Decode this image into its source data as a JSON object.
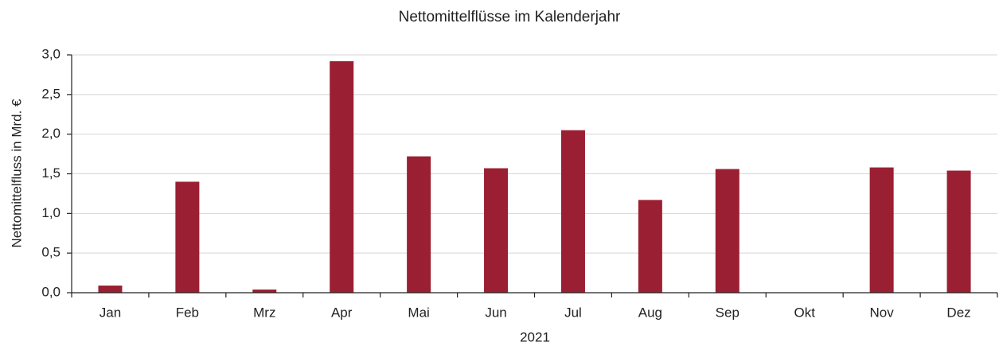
{
  "chart_data": {
    "type": "bar",
    "title": "Nettomittelflüsse im Kalenderjahr",
    "x_label": "2021",
    "y_label": "Nettomittelfluss in Mrd. €",
    "categories": [
      "Jan",
      "Feb",
      "Mrz",
      "Apr",
      "Mai",
      "Jun",
      "Jul",
      "Aug",
      "Sep",
      "Okt",
      "Nov",
      "Dez"
    ],
    "values": [
      0.09,
      1.4,
      0.04,
      2.92,
      1.72,
      1.57,
      2.05,
      1.17,
      1.56,
      0,
      1.58,
      1.54
    ],
    "color": "#9b1f32",
    "ylim": [
      0,
      3
    ],
    "yticks": [
      {
        "value": 0,
        "label": "0,0"
      },
      {
        "value": 0.5,
        "label": "0,5"
      },
      {
        "value": 1,
        "label": "1,0"
      },
      {
        "value": 1.5,
        "label": "1,5"
      },
      {
        "value": 2,
        "label": "2,0"
      },
      {
        "value": 2.5,
        "label": "2,5"
      },
      {
        "value": 3,
        "label": "3,0"
      }
    ],
    "grid": true
  }
}
